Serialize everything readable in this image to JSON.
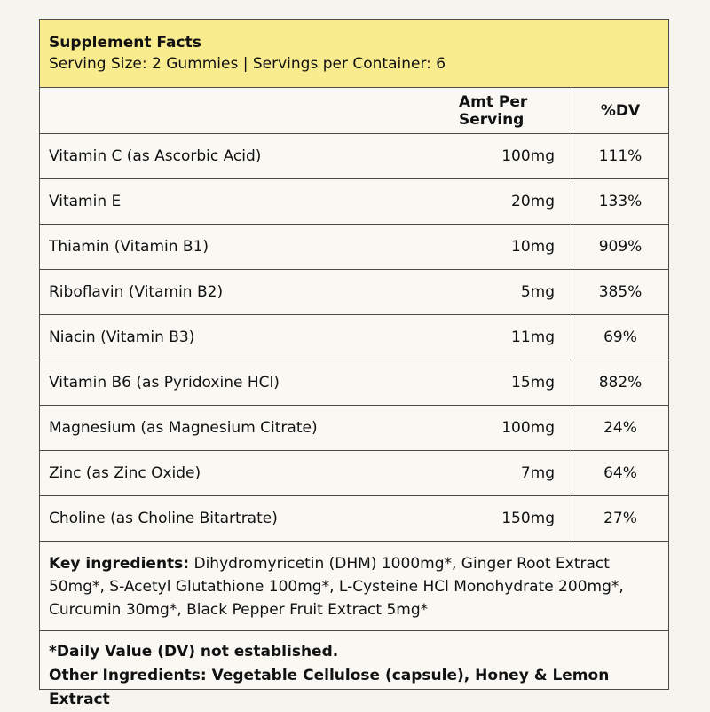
{
  "header": {
    "title": "Supplement Facts",
    "serving": "Serving Size: 2 Gummies | Servings per Container: 6"
  },
  "columns": {
    "amount": "Amt Per Serving",
    "dv": "%DV"
  },
  "nutrients": [
    {
      "name": "Vitamin C (as Ascorbic Acid)",
      "amount": "100mg",
      "dv": "111%"
    },
    {
      "name": "Vitamin E",
      "amount": "20mg",
      "dv": "133%"
    },
    {
      "name": "Thiamin (Vitamin B1)",
      "amount": "10mg",
      "dv": "909%"
    },
    {
      "name": "Riboflavin (Vitamin B2)",
      "amount": "5mg",
      "dv": "385%"
    },
    {
      "name": "Niacin (Vitamin B3)",
      "amount": "11mg",
      "dv": "69%"
    },
    {
      "name": "Vitamin B6 (as Pyridoxine HCl)",
      "amount": "15mg",
      "dv": "882%"
    },
    {
      "name": "Magnesium (as Magnesium Citrate)",
      "amount": "100mg",
      "dv": "24%"
    },
    {
      "name": "Zinc (as Zinc Oxide)",
      "amount": "7mg",
      "dv": "64%"
    },
    {
      "name": "Choline (as Choline Bitartrate)",
      "amount": "150mg",
      "dv": "27%"
    }
  ],
  "key_ingredients": {
    "label": "Key ingredients:",
    "text": " Dihydromyricetin (DHM) 1000mg*, Ginger Root Extract 50mg*, S-Acetyl Glutathione 100mg*, L-Cysteine HCl Monohydrate 200mg*, Curcumin 30mg*, Black Pepper Fruit Extract 5mg*"
  },
  "footer": {
    "dv_note": "*Daily Value (DV) not established.",
    "other_ingredients": "Other Ingredients: Vegetable Cellulose (capsule), Honey & Lemon Extract"
  },
  "colors": {
    "header_bg": "#f8ec8e",
    "border": "#4a4a4a",
    "page_bg": "#f6f4ee"
  }
}
